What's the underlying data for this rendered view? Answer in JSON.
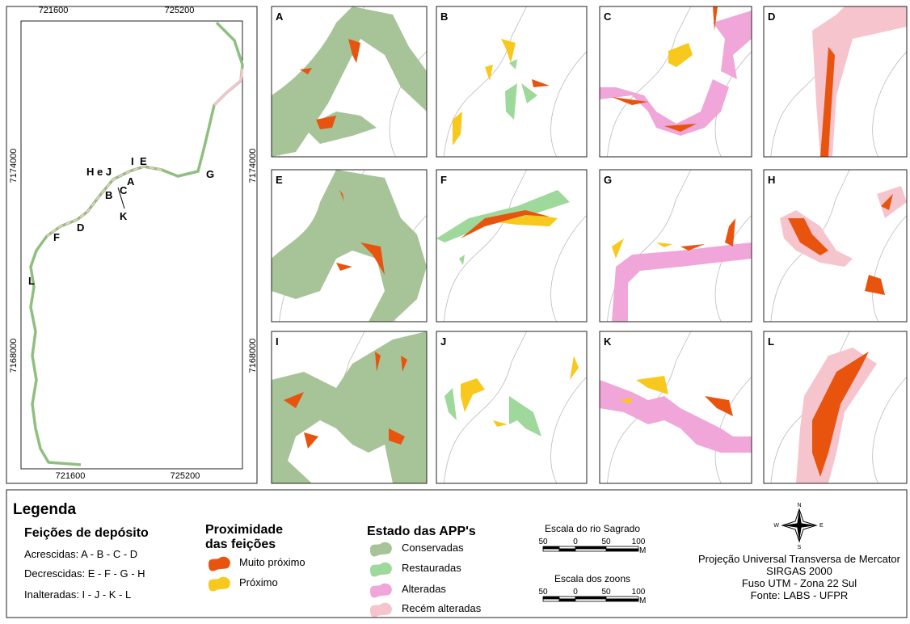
{
  "overview": {
    "x_labels_top": [
      "721600",
      "725200"
    ],
    "x_labels_bottom": [
      "721600",
      "725200"
    ],
    "y_labels_left": [
      "7174000",
      "7168000"
    ],
    "y_labels_right": [
      "7174000",
      "7168000"
    ],
    "points": [
      "H e J",
      "I",
      "E",
      "A",
      "B",
      "C",
      "K",
      "D",
      "F",
      "L",
      "G"
    ]
  },
  "panels": [
    "A",
    "B",
    "C",
    "D",
    "E",
    "F",
    "G",
    "H",
    "I",
    "J",
    "K",
    "L"
  ],
  "legend": {
    "title": "Legenda",
    "deposits": {
      "title": "Feições de depósito",
      "items": [
        "Acrescidas: A - B - C - D",
        "Decrescidas: E - F - G - H",
        "Inalteradas: I - J - K - L"
      ]
    },
    "proximity": {
      "title": [
        "Proximidade",
        "das feições"
      ],
      "items": [
        "Muito próximo",
        "Próximo"
      ]
    },
    "app": {
      "title": "Estado das APP's",
      "items": [
        "Conservadas",
        "Restauradas",
        "Alteradas",
        "Recém alteradas"
      ]
    },
    "scales": [
      {
        "title": "Escala do rio Sagrado",
        "ticks": [
          "50",
          "0",
          "50",
          "100"
        ],
        "unit": "M"
      },
      {
        "title": "Escala dos zoons",
        "ticks": [
          "50",
          "0",
          "50",
          "100"
        ],
        "unit": "M"
      }
    ],
    "compass": [
      "N",
      "S",
      "W",
      "E"
    ],
    "projection": [
      "Projeção Universal Transversa de Mercator",
      "SIRGAS 2000",
      "Fuso UTM - Zona 22 Sul",
      "Fonte: LABS - UFPR"
    ]
  }
}
